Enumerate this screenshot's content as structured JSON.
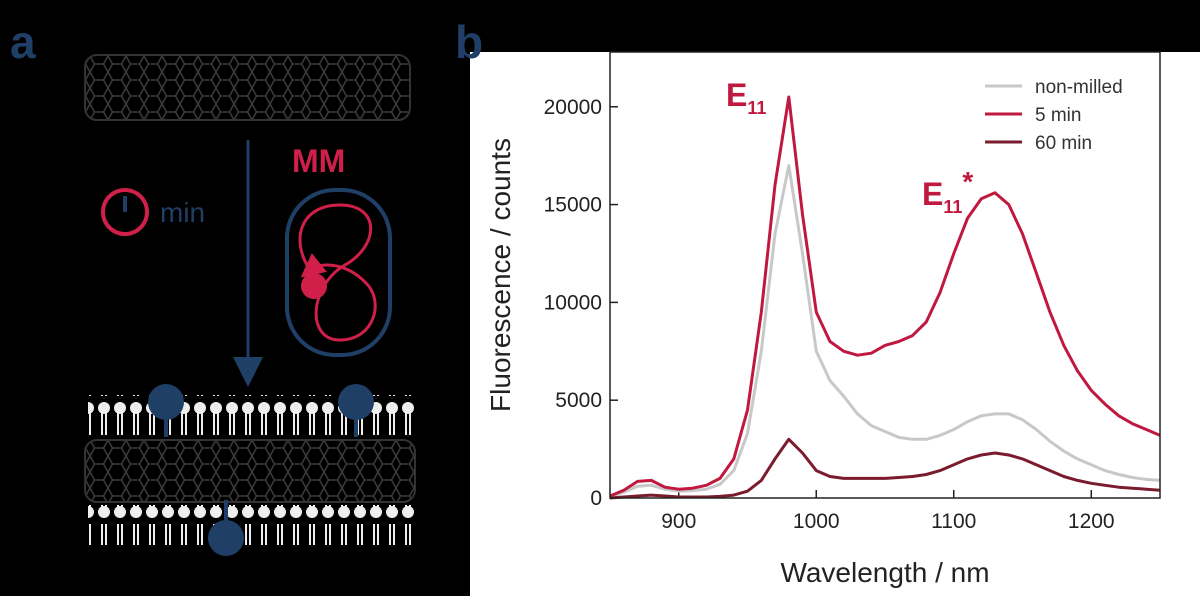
{
  "diagram": {
    "label": "a",
    "timer_label": "min",
    "mill_label": "MM"
  },
  "chart_data": {
    "type": "line",
    "panel_label": "b",
    "x_label": "Wavelength / nm",
    "y_label": "Fluorescence / counts",
    "xlim": [
      850,
      1250
    ],
    "xticks": [
      900,
      1000,
      1100,
      1200
    ],
    "ylim": [
      0,
      22800
    ],
    "yticks": [
      0,
      5000,
      10000,
      15000,
      20000
    ],
    "legend": "top-right",
    "annotations": [
      {
        "main": "E",
        "sub": "11"
      },
      {
        "main": "E",
        "sub": "11",
        "sup": "*"
      }
    ],
    "x": [
      850,
      860,
      870,
      880,
      890,
      900,
      910,
      920,
      930,
      940,
      950,
      960,
      970,
      980,
      990,
      1000,
      1010,
      1020,
      1030,
      1040,
      1050,
      1060,
      1070,
      1080,
      1090,
      1100,
      1110,
      1120,
      1130,
      1140,
      1150,
      1160,
      1170,
      1180,
      1190,
      1200,
      1210,
      1220,
      1230,
      1240,
      1250
    ],
    "series": [
      {
        "name": "non-milled",
        "color": "#c8c8c8",
        "values": [
          50,
          300,
          600,
          650,
          450,
          350,
          380,
          450,
          700,
          1400,
          3300,
          7500,
          13500,
          17000,
          12500,
          7500,
          6000,
          5200,
          4300,
          3700,
          3400,
          3100,
          3000,
          3000,
          3200,
          3500,
          3900,
          4200,
          4300,
          4300,
          4000,
          3500,
          2900,
          2400,
          2000,
          1700,
          1400,
          1200,
          1050,
          950,
          900
        ]
      },
      {
        "name": "5 min",
        "color": "#c0183f",
        "values": [
          100,
          400,
          850,
          900,
          550,
          450,
          500,
          650,
          1000,
          2000,
          4500,
          9500,
          16000,
          20500,
          14500,
          9500,
          8000,
          7500,
          7300,
          7400,
          7800,
          8000,
          8300,
          9000,
          10500,
          12500,
          14300,
          15300,
          15600,
          15000,
          13500,
          11500,
          9500,
          7800,
          6500,
          5500,
          4800,
          4200,
          3800,
          3500,
          3200
        ]
      },
      {
        "name": "60 min",
        "color": "#7a1c2e",
        "values": [
          0,
          50,
          100,
          150,
          100,
          50,
          50,
          50,
          80,
          150,
          350,
          900,
          2000,
          3000,
          2300,
          1400,
          1100,
          1000,
          1000,
          1000,
          1000,
          1050,
          1100,
          1200,
          1400,
          1700,
          2000,
          2200,
          2300,
          2200,
          2000,
          1700,
          1400,
          1100,
          900,
          750,
          650,
          550,
          500,
          450,
          400
        ]
      }
    ]
  }
}
